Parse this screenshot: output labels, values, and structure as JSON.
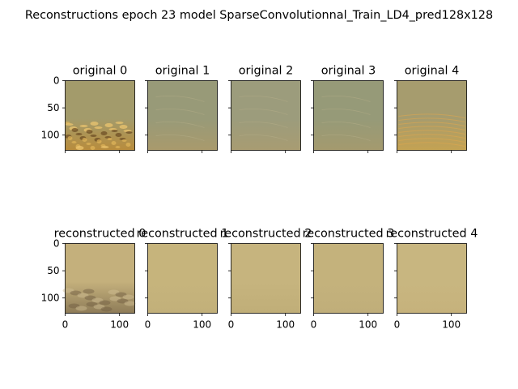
{
  "figure": {
    "suptitle": "Reconstructions epoch 23 model SparseConvolutionnal_Train_LD4_pred128x128"
  },
  "chart_data": {
    "type": "image_grid",
    "rows": 2,
    "cols": 5,
    "image_size": [
      128,
      128
    ],
    "axes": {
      "y_ticks": [
        0,
        50,
        100
      ],
      "x_ticks": [
        0,
        100
      ],
      "xlim": [
        0,
        128
      ],
      "ylim": [
        128,
        0
      ]
    },
    "panels": [
      {
        "title": "original 0",
        "row": 0,
        "col": 0,
        "base_color": "#a39b6b",
        "bottom_color": "#b88c3c",
        "texture": "bright bubbly bottom"
      },
      {
        "title": "original 1",
        "row": 0,
        "col": 1,
        "base_color": "#989a78",
        "bottom_color": "#a99a6c",
        "texture": "faint streaks"
      },
      {
        "title": "original 2",
        "row": 0,
        "col": 2,
        "base_color": "#9c9c7c",
        "bottom_color": "#a89c72",
        "texture": "faint streaks"
      },
      {
        "title": "original 3",
        "row": 0,
        "col": 3,
        "base_color": "#969a78",
        "bottom_color": "#a49a6e",
        "texture": "faint streaks"
      },
      {
        "title": "original 4",
        "row": 0,
        "col": 4,
        "base_color": "#a69c6e",
        "bottom_color": "#c4a252",
        "texture": "orange glints at bottom"
      },
      {
        "title": "reconstructed 0",
        "row": 1,
        "col": 0,
        "base_color": "#c4b07c",
        "bottom_color": "#8e7c58",
        "texture": "dark blurry bottom"
      },
      {
        "title": "reconstructed 1",
        "row": 1,
        "col": 1,
        "base_color": "#c6b47c",
        "bottom_color": "#c2b07a",
        "texture": "smooth"
      },
      {
        "title": "reconstructed 2",
        "row": 1,
        "col": 2,
        "base_color": "#c6b47e",
        "bottom_color": "#c0ae78",
        "texture": "smooth"
      },
      {
        "title": "reconstructed 3",
        "row": 1,
        "col": 3,
        "base_color": "#c4b27c",
        "bottom_color": "#c0ae7a",
        "texture": "smooth"
      },
      {
        "title": "reconstructed 4",
        "row": 1,
        "col": 4,
        "base_color": "#c8b680",
        "bottom_color": "#c6b27c",
        "texture": "smooth"
      }
    ]
  }
}
